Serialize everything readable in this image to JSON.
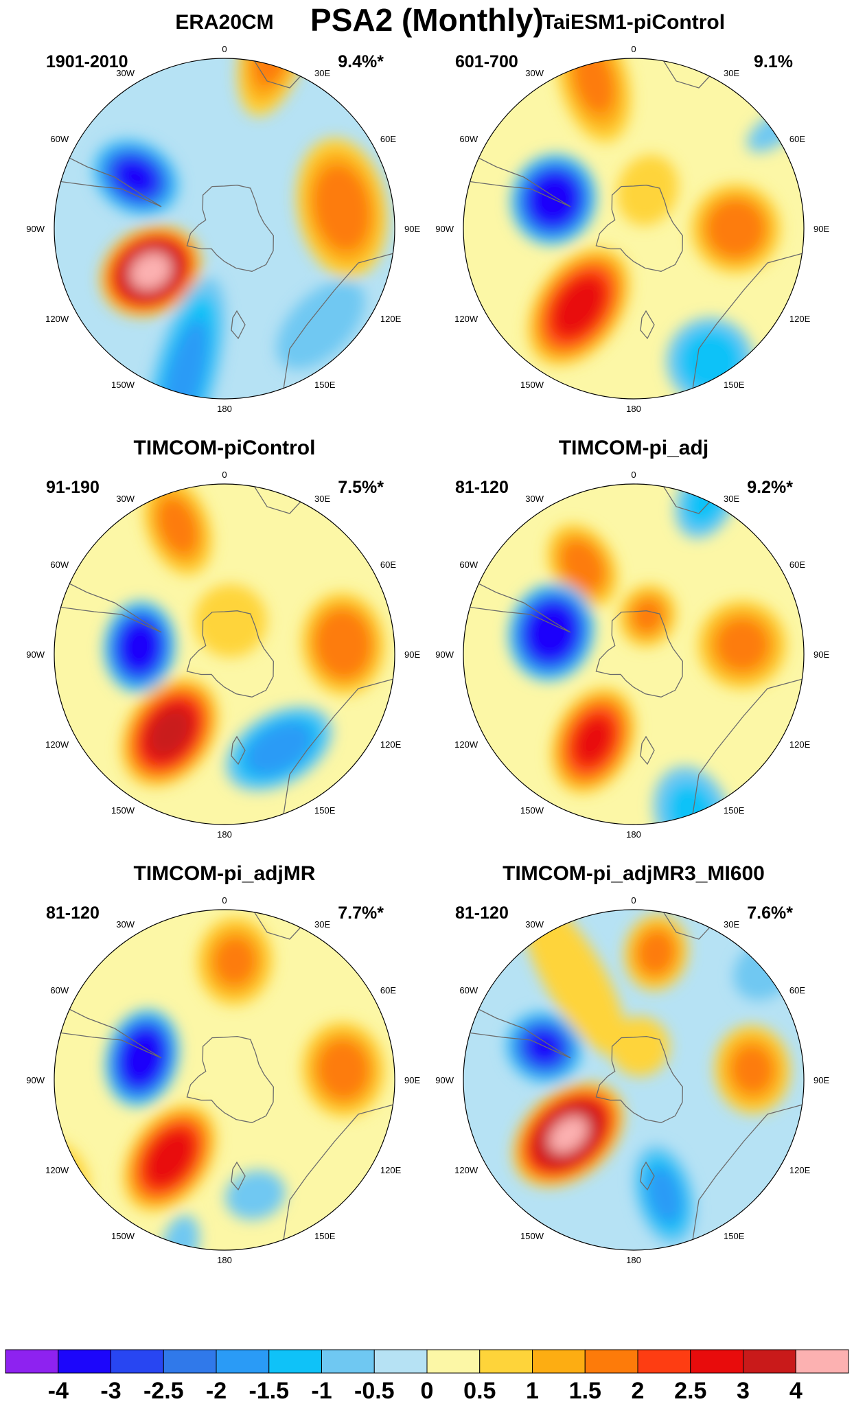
{
  "title": "PSA2 (Monthly)",
  "colors": [
    "#8e22f0",
    "#1c06fb",
    "#2846f2",
    "#3079ea",
    "#2a9bf6",
    "#0fc2f8",
    "#6fc8f2",
    "#b6e2f4",
    "#fcf7a6",
    "#fed43a",
    "#fdad12",
    "#fd7b0a",
    "#fe3d12",
    "#e80c0c",
    "#c91a1a",
    "#fcb1b1"
  ],
  "colorbar": {
    "labels": [
      "-4",
      "-3",
      "-2.5",
      "-2",
      "-1.5",
      "-1",
      "-0.5",
      "0",
      "0.5",
      "1",
      "1.5",
      "2",
      "2.5",
      "3",
      "4"
    ]
  },
  "longitude_labels": [
    {
      "label": "0",
      "angle": 0
    },
    {
      "label": "30E",
      "angle": 30
    },
    {
      "label": "60E",
      "angle": 60
    },
    {
      "label": "90E",
      "angle": 90
    },
    {
      "label": "120E",
      "angle": 120
    },
    {
      "label": "150E",
      "angle": 150
    },
    {
      "label": "180",
      "angle": 180
    },
    {
      "label": "150W",
      "angle": 210
    },
    {
      "label": "120W",
      "angle": 240
    },
    {
      "label": "90W",
      "angle": 270
    },
    {
      "label": "60W",
      "angle": 300
    },
    {
      "label": "30W",
      "angle": 330
    }
  ],
  "panels": [
    {
      "title": "ERA20CM",
      "period": "1901-2010",
      "variance": "9.4%*",
      "background": 7,
      "anomalies": [
        {
          "lon": 15,
          "lat": -35,
          "amp": 1.6,
          "sx": 0.22,
          "sy": 0.1
        },
        {
          "lon": 80,
          "lat": -55,
          "amp": 1.7,
          "sx": 0.14,
          "sy": 0.22
        },
        {
          "lon": 300,
          "lat": -60,
          "amp": -3.2,
          "sx": 0.14,
          "sy": 0.11
        },
        {
          "lon": 240,
          "lat": -65,
          "amp": 4.3,
          "sx": 0.16,
          "sy": 0.13
        },
        {
          "lon": 195,
          "lat": -45,
          "amp": -1.6,
          "sx": 0.32,
          "sy": 0.1
        },
        {
          "lon": 135,
          "lat": -50,
          "amp": -0.9,
          "sx": 0.1,
          "sy": 0.18
        }
      ]
    },
    {
      "title": "TaiESM1-piControl",
      "period": "601-700",
      "variance": "9.1%",
      "background": 8,
      "anomalies": [
        {
          "lon": 345,
          "lat": -45,
          "amp": 1.5,
          "sx": 0.2,
          "sy": 0.11
        },
        {
          "lon": 55,
          "lat": -40,
          "amp": -0.8,
          "sx": 0.1,
          "sy": 0.05
        },
        {
          "lon": 90,
          "lat": -60,
          "amp": 1.8,
          "sx": 0.14,
          "sy": 0.14
        },
        {
          "lon": 290,
          "lat": -65,
          "amp": -3.8,
          "sx": 0.13,
          "sy": 0.14
        },
        {
          "lon": 215,
          "lat": -62,
          "amp": 2.8,
          "sx": 0.2,
          "sy": 0.13
        },
        {
          "lon": 150,
          "lat": -45,
          "amp": -1.2,
          "sx": 0.14,
          "sy": 0.14
        },
        {
          "lon": 20,
          "lat": -78,
          "amp": 0.8,
          "sx": 0.12,
          "sy": 0.1
        }
      ]
    },
    {
      "title": "TIMCOM-piControl",
      "period": "91-190",
      "variance": "7.5%*",
      "background": 8,
      "anomalies": [
        {
          "lon": 340,
          "lat": -50,
          "amp": 1.6,
          "sx": 0.16,
          "sy": 0.1
        },
        {
          "lon": 85,
          "lat": -55,
          "amp": 1.9,
          "sx": 0.13,
          "sy": 0.16
        },
        {
          "lon": 275,
          "lat": -65,
          "amp": -3.7,
          "sx": 0.11,
          "sy": 0.14
        },
        {
          "lon": 215,
          "lat": -62,
          "amp": 3.2,
          "sx": 0.18,
          "sy": 0.13
        },
        {
          "lon": 150,
          "lat": -58,
          "amp": -1.8,
          "sx": 0.11,
          "sy": 0.18
        },
        {
          "lon": 10,
          "lat": -80,
          "amp": 0.9,
          "sx": 0.12,
          "sy": 0.12
        }
      ]
    },
    {
      "title": "TIMCOM-pi_adj",
      "period": "81-120",
      "variance": "9.2%*",
      "background": 8,
      "anomalies": [
        {
          "lon": 25,
          "lat": -40,
          "amp": -1.1,
          "sx": 0.13,
          "sy": 0.09
        },
        {
          "lon": 330,
          "lat": -60,
          "amp": 1.7,
          "sx": 0.14,
          "sy": 0.1
        },
        {
          "lon": 85,
          "lat": -58,
          "amp": 1.6,
          "sx": 0.14,
          "sy": 0.14
        },
        {
          "lon": 285,
          "lat": -65,
          "amp": -3.9,
          "sx": 0.13,
          "sy": 0.15
        },
        {
          "lon": 205,
          "lat": -62,
          "amp": 2.6,
          "sx": 0.17,
          "sy": 0.12
        },
        {
          "lon": 160,
          "lat": -40,
          "amp": -1.0,
          "sx": 0.16,
          "sy": 0.12
        },
        {
          "lon": 20,
          "lat": -78,
          "amp": 1.5,
          "sx": 0.1,
          "sy": 0.09
        }
      ]
    },
    {
      "title": "TIMCOM-pi_adjMR",
      "period": "81-120",
      "variance": "7.7%*",
      "background": 8,
      "anomalies": [
        {
          "lon": 5,
          "lat": -55,
          "amp": 1.5,
          "sx": 0.14,
          "sy": 0.12
        },
        {
          "lon": 85,
          "lat": -55,
          "amp": 1.7,
          "sx": 0.13,
          "sy": 0.15
        },
        {
          "lon": 285,
          "lat": -65,
          "amp": -3.9,
          "sx": 0.11,
          "sy": 0.15
        },
        {
          "lon": 215,
          "lat": -62,
          "amp": 2.9,
          "sx": 0.18,
          "sy": 0.12
        },
        {
          "lon": 240,
          "lat": -35,
          "amp": 0.7,
          "sx": 0.08,
          "sy": 0.12
        },
        {
          "lon": 165,
          "lat": -55,
          "amp": -0.9,
          "sx": 0.08,
          "sy": 0.1
        },
        {
          "lon": 195,
          "lat": -40,
          "amp": -0.8,
          "sx": 0.1,
          "sy": 0.06
        }
      ]
    },
    {
      "title": "TIMCOM-pi_adjMR3_MI600",
      "period": "81-120",
      "variance": "7.6%*",
      "background": 7,
      "anomalies": [
        {
          "lon": 10,
          "lat": -52,
          "amp": 1.6,
          "sx": 0.12,
          "sy": 0.1
        },
        {
          "lon": 50,
          "lat": -40,
          "amp": -0.8,
          "sx": 0.11,
          "sy": 0.09
        },
        {
          "lon": 85,
          "lat": -55,
          "amp": 1.5,
          "sx": 0.12,
          "sy": 0.14
        },
        {
          "lon": 290,
          "lat": -62,
          "amp": -3.1,
          "sx": 0.12,
          "sy": 0.11
        },
        {
          "lon": 230,
          "lat": -65,
          "amp": 4.1,
          "sx": 0.19,
          "sy": 0.13
        },
        {
          "lon": 165,
          "lat": -55,
          "amp": -1.6,
          "sx": 0.16,
          "sy": 0.09
        },
        {
          "lon": 330,
          "lat": -55,
          "amp": 0.8,
          "sx": 0.3,
          "sy": 0.1
        },
        {
          "lon": 10,
          "lat": -80,
          "amp": 0.8,
          "sx": 0.1,
          "sy": 0.1
        }
      ]
    }
  ]
}
